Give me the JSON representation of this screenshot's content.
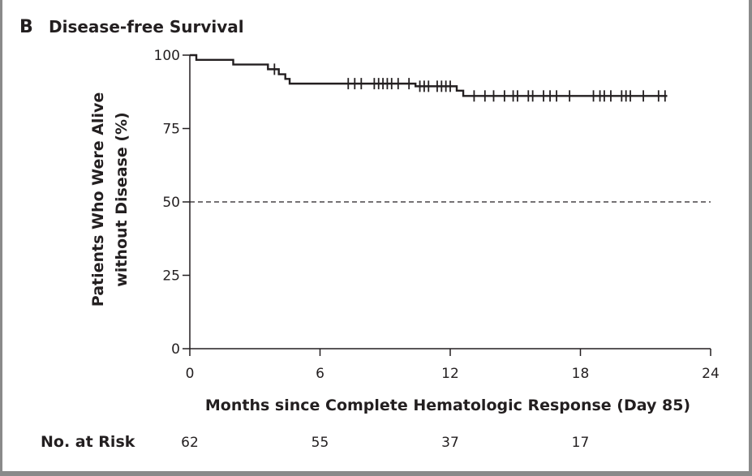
{
  "panel": {
    "letter": "B",
    "title": "Disease-free Survival"
  },
  "chart_data": {
    "type": "line",
    "title": "Disease-free Survival",
    "xlabel": "Months since Complete Hematologic Response (Day 85)",
    "ylabel_line1": "Patients Who Were Alive",
    "ylabel_line2": "without Disease (%)",
    "xlim": [
      0,
      24
    ],
    "ylim": [
      0,
      100
    ],
    "x_ticks": [
      0,
      6,
      12,
      18,
      24
    ],
    "y_ticks": [
      0,
      25,
      50,
      75,
      100
    ],
    "reference_line": {
      "y": 50,
      "style": "dashed"
    },
    "series": [
      {
        "steps": [
          [
            0,
            100
          ],
          [
            0.2,
            100
          ],
          [
            0.3,
            98.4
          ],
          [
            1.9,
            98.4
          ],
          [
            2.0,
            96.8
          ],
          [
            3.5,
            96.8
          ],
          [
            3.6,
            95.2
          ],
          [
            4.0,
            95.2
          ],
          [
            4.1,
            93.5
          ],
          [
            4.3,
            93.5
          ],
          [
            4.4,
            91.9
          ],
          [
            4.5,
            91.9
          ],
          [
            4.6,
            90.3
          ],
          [
            10.3,
            90.3
          ],
          [
            10.4,
            89.4
          ],
          [
            12.2,
            89.4
          ],
          [
            12.3,
            87.9
          ],
          [
            12.5,
            87.9
          ],
          [
            12.6,
            86.1
          ],
          [
            22.0,
            86.1
          ]
        ],
        "censored": [
          [
            3.9,
            95.2
          ],
          [
            7.3,
            90.3
          ],
          [
            7.6,
            90.3
          ],
          [
            7.9,
            90.3
          ],
          [
            8.5,
            90.3
          ],
          [
            8.7,
            90.3
          ],
          [
            8.9,
            90.3
          ],
          [
            9.1,
            90.3
          ],
          [
            9.3,
            90.3
          ],
          [
            9.6,
            90.3
          ],
          [
            10.1,
            90.3
          ],
          [
            10.6,
            89.4
          ],
          [
            10.8,
            89.4
          ],
          [
            11.0,
            89.4
          ],
          [
            11.4,
            89.4
          ],
          [
            11.6,
            89.4
          ],
          [
            11.8,
            89.4
          ],
          [
            12.0,
            89.4
          ],
          [
            13.1,
            86.1
          ],
          [
            13.6,
            86.1
          ],
          [
            14.0,
            86.1
          ],
          [
            14.5,
            86.1
          ],
          [
            14.9,
            86.1
          ],
          [
            15.1,
            86.1
          ],
          [
            15.6,
            86.1
          ],
          [
            15.8,
            86.1
          ],
          [
            16.3,
            86.1
          ],
          [
            16.6,
            86.1
          ],
          [
            16.9,
            86.1
          ],
          [
            17.5,
            86.1
          ],
          [
            18.6,
            86.1
          ],
          [
            18.9,
            86.1
          ],
          [
            19.1,
            86.1
          ],
          [
            19.4,
            86.1
          ],
          [
            19.9,
            86.1
          ],
          [
            20.1,
            86.1
          ],
          [
            20.3,
            86.1
          ],
          [
            20.9,
            86.1
          ],
          [
            21.6,
            86.1
          ],
          [
            21.9,
            86.1
          ]
        ]
      }
    ],
    "number_at_risk": {
      "label": "No. at Risk",
      "times": [
        0,
        6,
        12,
        18
      ],
      "values": [
        "62",
        "55",
        "37",
        "17"
      ]
    }
  }
}
